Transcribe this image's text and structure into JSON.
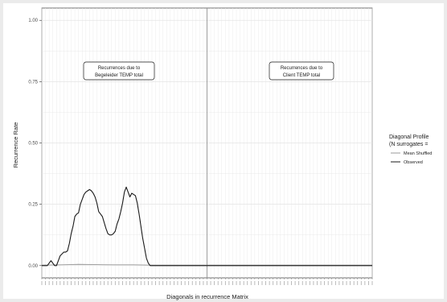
{
  "chart_data": {
    "type": "line",
    "xlabel": "Diagonals in recurrence Matrix",
    "ylabel": "Recurrence Rate",
    "ylim": [
      0,
      1
    ],
    "yticks": [
      "0.00",
      "0.25",
      "0.50",
      "0.75",
      "1.00"
    ],
    "ytick_values": [
      0,
      0.25,
      0.5,
      0.75,
      1.0
    ],
    "grid": true,
    "x_range": [
      -90,
      90
    ],
    "center_line_x": 0,
    "legend": {
      "title_lines": [
        "Diagonal Profile",
        "(N surrogates ="
      ],
      "placement": "right",
      "entries": [
        "Mean Shuffled",
        "Observed"
      ]
    },
    "annotations": [
      {
        "lines": [
          "Recurrences due to",
          "Begeleider TEMP total"
        ],
        "side": "left"
      },
      {
        "lines": [
          "Recurrences due to",
          "Client TEMP total"
        ],
        "side": "right"
      }
    ],
    "series": [
      {
        "name": "Observed",
        "color": "#1a1a1a",
        "x": [
          -90,
          -87,
          -86,
          -85,
          -83,
          -82,
          -81,
          -80,
          -78,
          -77,
          -76,
          -75,
          -74,
          -73,
          -72,
          -71,
          -70,
          -69,
          -68,
          -67,
          -66,
          -65,
          -64,
          -63,
          -62,
          -61,
          -60,
          -59,
          -58,
          -57,
          -56,
          -55,
          -54,
          -53,
          -52,
          -51,
          -50,
          -49,
          -48,
          -47,
          -46,
          -45,
          -44,
          -43,
          -42,
          -41,
          -40,
          -39,
          -38,
          -37,
          -36,
          -35,
          -34,
          -33,
          -32,
          -31,
          -30,
          -29,
          -28,
          -27,
          -25,
          -20,
          -10,
          0,
          10,
          20,
          30,
          40,
          50,
          60,
          70,
          80,
          90
        ],
        "y": [
          0.0,
          0.0,
          0.01,
          0.02,
          0.0,
          0.0,
          0.02,
          0.04,
          0.055,
          0.055,
          0.06,
          0.09,
          0.13,
          0.16,
          0.2,
          0.21,
          0.215,
          0.25,
          0.27,
          0.29,
          0.3,
          0.305,
          0.31,
          0.305,
          0.295,
          0.28,
          0.255,
          0.22,
          0.21,
          0.2,
          0.175,
          0.15,
          0.13,
          0.125,
          0.125,
          0.13,
          0.14,
          0.17,
          0.19,
          0.22,
          0.255,
          0.3,
          0.32,
          0.3,
          0.28,
          0.295,
          0.29,
          0.285,
          0.255,
          0.21,
          0.16,
          0.11,
          0.07,
          0.03,
          0.01,
          0.0,
          0.0,
          0.0,
          0.0,
          0.0,
          0.0,
          0.0,
          0.0,
          0.0,
          0.0,
          0.0,
          0.0,
          0.0,
          0.0,
          0.0,
          0.0,
          0.0,
          0.0
        ]
      },
      {
        "name": "Mean Shuffled",
        "color": "#999999",
        "x": [
          -90,
          -80,
          -75,
          -70,
          -60,
          -50,
          -40,
          -30,
          -20,
          -10,
          0,
          10,
          20,
          30,
          40,
          50,
          60,
          70,
          80,
          90
        ],
        "y": [
          0.002,
          0.003,
          0.004,
          0.005,
          0.004,
          0.003,
          0.003,
          0.002,
          0.002,
          0.002,
          0.002,
          0.002,
          0.002,
          0.002,
          0.002,
          0.002,
          0.002,
          0.002,
          0.002,
          0.002
        ]
      }
    ],
    "x_tick_count": 90
  }
}
